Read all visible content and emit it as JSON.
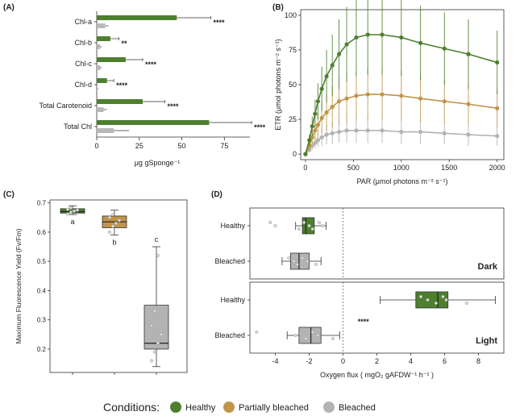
{
  "colors": {
    "healthy": "#4e7f2f",
    "partial": "#c0954a",
    "bleached": "#b3b3b3",
    "bar_gray": "#b8b8b8",
    "axis": "#333333"
  },
  "chart_data": [
    {
      "panel": "(A)",
      "type": "bar",
      "orientation": "horizontal",
      "xlabel": "μg gSponge⁻¹",
      "xlim": [
        0,
        90
      ],
      "xticks": [
        "0",
        "25",
        "50",
        "75"
      ],
      "categories": [
        "Chl-a",
        "Chl-b",
        "Chl-c",
        "Chl-d",
        "Total Carotenoid",
        "Total Chl"
      ],
      "series": [
        {
          "name": "Healthy",
          "values": [
            47,
            8,
            17,
            6,
            27,
            66
          ],
          "errors": [
            20,
            5,
            10,
            4,
            13,
            25
          ]
        },
        {
          "name": "Bleached",
          "values": [
            5,
            2,
            2,
            0.5,
            4,
            10
          ],
          "errors": [
            2,
            1,
            1,
            0.5,
            2,
            9
          ]
        }
      ],
      "significance": [
        "****",
        "**",
        "****",
        "****",
        "****",
        "****"
      ]
    },
    {
      "panel": "(B)",
      "type": "line",
      "xlabel": "PAR (μmol photons m⁻² s⁻¹)",
      "ylabel": "ETR (μmol photons m⁻² s⁻¹)",
      "xlim": [
        -50,
        2070
      ],
      "ylim": [
        -4,
        104
      ],
      "xticks": [
        "0",
        "500",
        "1000",
        "1500",
        "2000"
      ],
      "yticks": [
        "0",
        "25",
        "50",
        "75",
        "100"
      ],
      "x": [
        0,
        40,
        70,
        100,
        130,
        170,
        220,
        280,
        350,
        430,
        530,
        650,
        800,
        1000,
        1200,
        1450,
        1700,
        2000
      ],
      "series": [
        {
          "name": "Healthy",
          "values": [
            0,
            10,
            20,
            29,
            38,
            47,
            56,
            64,
            72,
            79,
            84,
            86,
            86,
            84,
            80,
            76,
            72,
            66
          ],
          "errors": [
            0,
            4,
            7,
            10,
            13,
            16,
            19,
            22,
            25,
            27,
            28,
            29,
            29,
            28,
            27,
            26,
            25,
            23
          ]
        },
        {
          "name": "Partially bleached",
          "values": [
            0,
            6,
            12,
            17,
            21,
            26,
            30,
            34,
            38,
            40,
            42,
            43,
            43,
            42,
            40,
            38,
            36,
            33
          ],
          "errors": [
            0,
            3,
            5,
            7,
            9,
            11,
            13,
            15,
            17,
            18,
            18,
            19,
            19,
            18,
            17,
            16,
            15,
            14
          ]
        },
        {
          "name": "Bleached",
          "values": [
            0,
            3,
            6,
            8,
            10,
            12,
            14,
            15,
            16,
            17,
            17,
            17,
            17,
            16,
            16,
            15,
            14,
            13
          ],
          "errors": [
            0,
            2,
            3,
            4,
            5,
            6,
            7,
            8,
            8,
            9,
            9,
            9,
            9,
            9,
            9,
            8,
            8,
            7
          ]
        }
      ]
    },
    {
      "panel": "(C)",
      "type": "box",
      "ylabel": "Maximum Fluorescence Yield (Fv/Fm)",
      "ylim": [
        0.12,
        0.71
      ],
      "yticks": [
        "0.2",
        "0.3",
        "0.4",
        "0.5",
        "0.6",
        "0.7"
      ],
      "groups": [
        {
          "name": "Healthy",
          "min": 0.66,
          "q1": 0.665,
          "median": 0.67,
          "q3": 0.68,
          "max": 0.69,
          "letter": "a",
          "points": [
            0.662,
            0.668,
            0.672,
            0.675,
            0.678,
            0.683
          ]
        },
        {
          "name": "Partially bleached",
          "min": 0.59,
          "q1": 0.615,
          "median": 0.635,
          "q3": 0.655,
          "max": 0.675,
          "letter": "b",
          "points": [
            0.6,
            0.62,
            0.63,
            0.64,
            0.65,
            0.66
          ]
        },
        {
          "name": "Bleached",
          "min": 0.14,
          "q1": 0.2,
          "median": 0.22,
          "q3": 0.35,
          "max": 0.55,
          "letter": "c",
          "points": [
            0.16,
            0.19,
            0.22,
            0.25,
            0.28,
            0.33,
            0.52
          ]
        }
      ]
    },
    {
      "panel": "(D)",
      "type": "box",
      "orientation": "horizontal",
      "xlabel": "Oxygen flux ( mgO₂ gAFDW⁻¹ h⁻¹ )",
      "xlim": [
        -5.5,
        9.5
      ],
      "xticks": [
        "-4",
        "-2",
        "0",
        "2",
        "4",
        "6",
        "8"
      ],
      "facets": [
        {
          "name": "Dark",
          "rows": [
            {
              "name": "Healthy",
              "min": -2.8,
              "q1": -2.4,
              "median": -2.2,
              "q3": -1.7,
              "max": -1.0,
              "points": [
                -4.3,
                -4.0,
                -2.6,
                -2.3,
                -2.0,
                -1.8,
                -1.4,
                -1.2
              ]
            },
            {
              "name": "Bleached",
              "min": -3.6,
              "q1": -3.1,
              "median": -2.6,
              "q3": -2.0,
              "max": -1.3,
              "points": [
                -3.2,
                -2.9,
                -2.7,
                -2.4,
                -2.1,
                -1.6
              ]
            }
          ]
        },
        {
          "name": "Light",
          "rows": [
            {
              "name": "Healthy",
              "min": 2.2,
              "q1": 4.3,
              "median": 5.6,
              "q3": 6.2,
              "max": 9.0,
              "points": [
                4.6,
                5.0,
                5.5,
                5.9,
                6.1,
                7.3
              ]
            },
            {
              "name": "Bleached",
              "min": -3.3,
              "q1": -2.6,
              "median": -1.9,
              "q3": -1.3,
              "max": -0.2,
              "points": [
                -5.1,
                -2.8,
                -2.2,
                -1.8,
                -1.5,
                -0.6
              ]
            }
          ]
        }
      ],
      "significance": "****"
    }
  ],
  "legend": {
    "title": "Conditions:",
    "items": [
      {
        "label": "Healthy",
        "color": "#4e7f2f"
      },
      {
        "label": "Partially bleached",
        "color": "#c0954a"
      },
      {
        "label": "Bleached",
        "color": "#b3b3b3"
      }
    ]
  }
}
